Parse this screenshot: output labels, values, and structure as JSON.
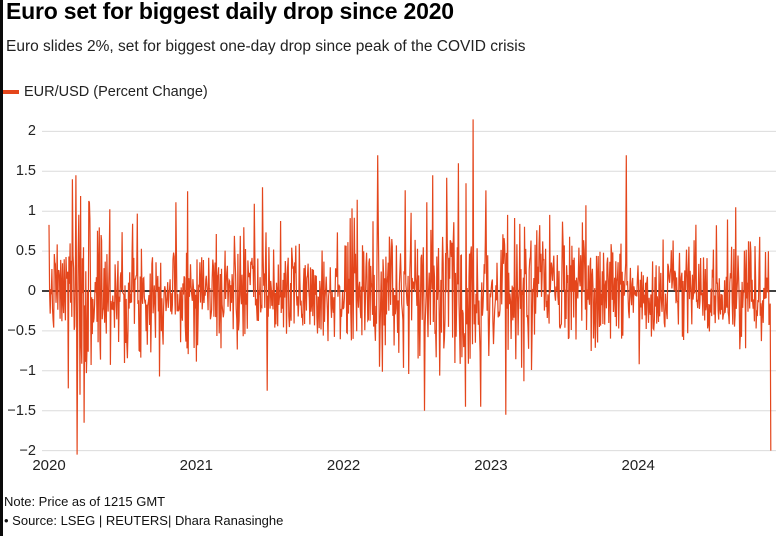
{
  "header": {
    "title": "Euro set for biggest daily drop since 2020",
    "subtitle": "Euro slides 2%, set for biggest one-day drop since peak of the COVID crisis"
  },
  "legend": {
    "label": "EUR/USD (Percent Change)"
  },
  "footer": {
    "note": "Note: Price as of 1215 GMT",
    "source": "• Source: LSEG | REUTERS| Dhara Ranasinghe"
  },
  "colors": {
    "series": "#E4461C",
    "gridline": "#DCDCDC",
    "zero_axis": "#000000",
    "left_rule": "#0A0A0A",
    "text": "#222222"
  },
  "chart_data": {
    "type": "line",
    "title": "Euro set for biggest daily drop since 2020",
    "xlabel": "",
    "ylabel": "EUR/USD (Percent Change)",
    "legend_position": "top-left",
    "grid": true,
    "xlim": [
      2019.97,
      2024.93
    ],
    "ylim": [
      -2.3,
      2.3
    ],
    "x_ticks": [
      2020,
      2021,
      2022,
      2023,
      2024
    ],
    "y_ticks": [
      2,
      1.5,
      1,
      0.5,
      0,
      -0.5,
      -1,
      -1.5,
      -2
    ],
    "y_tick_labels": [
      "2",
      "1.5",
      "1",
      "0.5",
      "0",
      "−0.5",
      "−1",
      "−1.5",
      "−2"
    ],
    "series": [
      {
        "name": "EUR/USD (Percent Change)",
        "color": "#E4461C",
        "max_value": 2.15,
        "min_value": -2.05,
        "last_value": -2.0,
        "series_spec": {
          "comment": "Daily percent change, ~252 points per year; noise envelope with key extreme days overlaid",
          "seed": 7,
          "n": 1235,
          "x_start": 2020.0,
          "x_end": 2024.9,
          "clamp": 1.45,
          "volatility_segments": [
            [
              2020.0,
              2020.13,
              0.3
            ],
            [
              2020.13,
              2020.42,
              0.6
            ],
            [
              2020.42,
              2020.7,
              0.4
            ],
            [
              2020.7,
              2021.6,
              0.34
            ],
            [
              2021.6,
              2022.0,
              0.3
            ],
            [
              2022.0,
              2022.6,
              0.46
            ],
            [
              2022.6,
              2022.97,
              0.55
            ],
            [
              2022.97,
              2023.35,
              0.44
            ],
            [
              2023.35,
              2023.95,
              0.36
            ],
            [
              2023.95,
              2024.91,
              0.29
            ]
          ]
        },
        "key_points": [
          {
            "x": 2020.16,
            "y": 1.4
          },
          {
            "x": 2020.19,
            "y": -2.05
          },
          {
            "x": 2020.21,
            "y": -1.3
          },
          {
            "x": 2020.24,
            "y": -1.65
          },
          {
            "x": 2020.94,
            "y": 1.25
          },
          {
            "x": 2021.45,
            "y": 1.3
          },
          {
            "x": 2021.48,
            "y": -1.25
          },
          {
            "x": 2022.23,
            "y": 1.7
          },
          {
            "x": 2022.55,
            "y": -1.5
          },
          {
            "x": 2022.78,
            "y": 1.6
          },
          {
            "x": 2022.83,
            "y": 1.35
          },
          {
            "x": 2022.88,
            "y": 2.15
          },
          {
            "x": 2022.93,
            "y": -1.45
          },
          {
            "x": 2023.1,
            "y": -1.55
          },
          {
            "x": 2023.92,
            "y": 1.7
          },
          {
            "x": 2024.66,
            "y": 1.05
          },
          {
            "x": 2024.9,
            "y": -2.0
          }
        ]
      }
    ]
  }
}
